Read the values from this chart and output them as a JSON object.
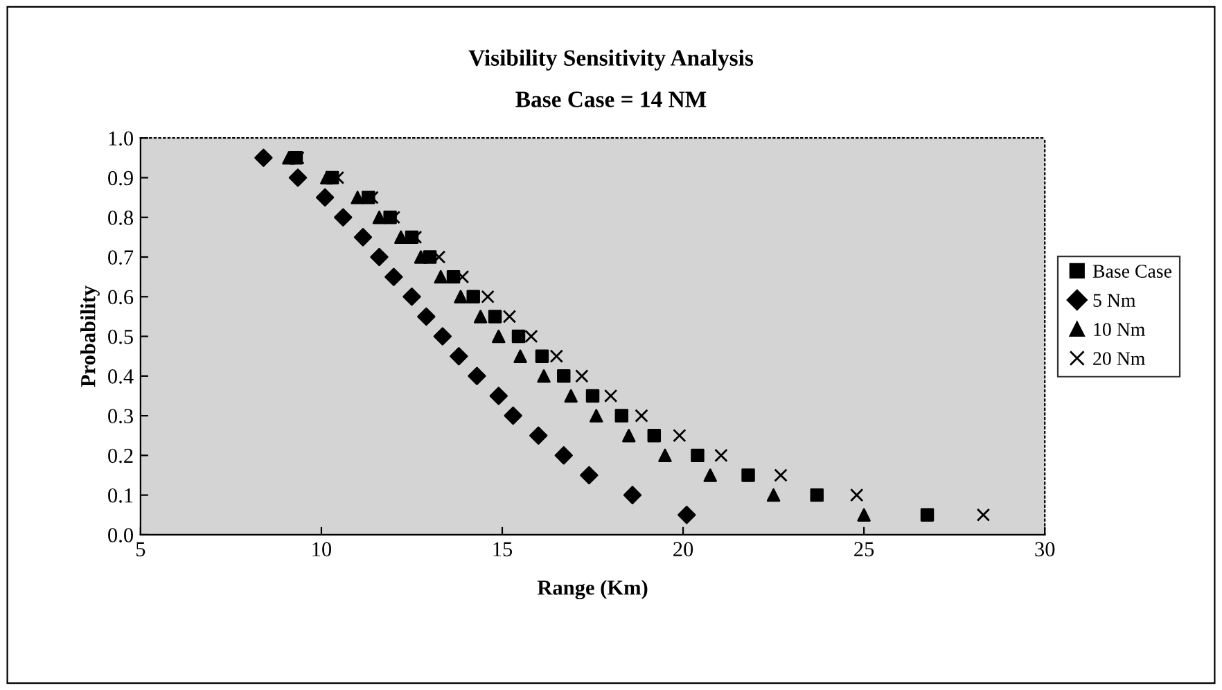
{
  "chart_data": {
    "type": "scatter",
    "title": "Visibility Sensitivity Analysis",
    "subtitle": "Base Case = 14 NM",
    "xlabel": "Range (Km)",
    "ylabel": "Probability",
    "xlim": [
      5,
      30
    ],
    "xticks": [
      5,
      10,
      15,
      20,
      25,
      30
    ],
    "ylim": [
      0,
      1
    ],
    "yticks": [
      {
        "value": 0,
        "label": "0.0"
      },
      {
        "value": 0.1,
        "label": "0.1"
      },
      {
        "value": 0.2,
        "label": "0.2"
      },
      {
        "value": 0.3,
        "label": "0.3"
      },
      {
        "value": 0.4,
        "label": "0.4"
      },
      {
        "value": 0.5,
        "label": "0.5"
      },
      {
        "value": 0.6,
        "label": "0.6"
      },
      {
        "value": 0.7,
        "label": "0.7"
      },
      {
        "value": 0.8,
        "label": "0.8"
      },
      {
        "value": 0.9,
        "label": "0.9"
      },
      {
        "value": 1,
        "label": "1.0"
      }
    ],
    "grid": false,
    "legend": "right",
    "series": [
      {
        "name": "Base Case",
        "color": "#000000",
        "marker": "square",
        "x": [
          9.3,
          10.3,
          11.3,
          11.9,
          12.5,
          13.0,
          13.65,
          14.2,
          14.8,
          15.45,
          16.1,
          16.7,
          17.5,
          18.3,
          19.2,
          20.4,
          21.8,
          23.7,
          26.75
        ],
        "values": [
          0.95,
          0.9,
          0.85,
          0.8,
          0.75,
          0.7,
          0.65,
          0.6,
          0.55,
          0.5,
          0.45,
          0.4,
          0.35,
          0.3,
          0.25,
          0.2,
          0.15,
          0.1,
          0.05
        ]
      },
      {
        "name": "5 Nm",
        "color": "#000000",
        "marker": "diamond",
        "x": [
          8.4,
          9.35,
          10.1,
          10.6,
          11.15,
          11.6,
          12.0,
          12.5,
          12.9,
          13.35,
          13.8,
          14.3,
          14.9,
          15.3,
          16.0,
          16.7,
          17.4,
          18.6,
          20.1
        ],
        "values": [
          0.95,
          0.9,
          0.85,
          0.8,
          0.75,
          0.7,
          0.65,
          0.6,
          0.55,
          0.5,
          0.45,
          0.4,
          0.35,
          0.3,
          0.25,
          0.2,
          0.15,
          0.1,
          0.05
        ]
      },
      {
        "name": "10 Nm",
        "color": "#000000",
        "marker": "triangle",
        "x": [
          9.1,
          10.15,
          11.0,
          11.6,
          12.2,
          12.75,
          13.3,
          13.85,
          14.4,
          14.9,
          15.5,
          16.15,
          16.9,
          17.6,
          18.5,
          19.5,
          20.75,
          22.5,
          25.0
        ],
        "values": [
          0.95,
          0.9,
          0.85,
          0.8,
          0.75,
          0.7,
          0.65,
          0.6,
          0.55,
          0.5,
          0.45,
          0.4,
          0.35,
          0.3,
          0.25,
          0.2,
          0.15,
          0.1,
          0.05
        ]
      },
      {
        "name": "20 Nm",
        "color": "#000000",
        "marker": "cross",
        "x": [
          9.35,
          10.45,
          11.4,
          12.0,
          12.6,
          13.25,
          13.9,
          14.6,
          15.2,
          15.8,
          16.5,
          17.2,
          18.0,
          18.85,
          19.9,
          21.05,
          22.7,
          24.8,
          28.3
        ],
        "values": [
          0.95,
          0.9,
          0.85,
          0.8,
          0.75,
          0.7,
          0.65,
          0.6,
          0.55,
          0.5,
          0.45,
          0.4,
          0.35,
          0.3,
          0.25,
          0.2,
          0.15,
          0.1,
          0.05
        ]
      }
    ]
  }
}
